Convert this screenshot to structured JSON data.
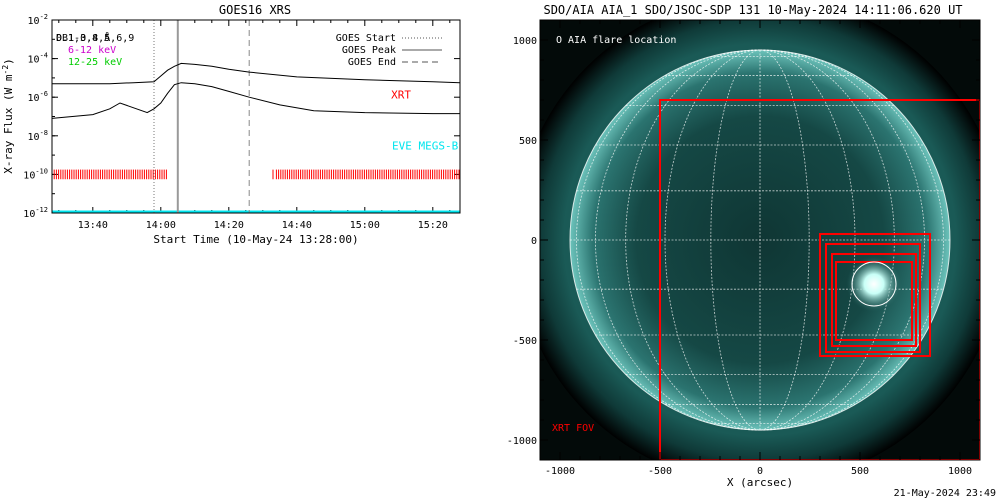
{
  "chart_data": [
    {
      "type": "line",
      "title": "GOES16 XRS",
      "xlabel": "Start Time (10-May-24 13:28:00)",
      "ylabel": "X-ray Flux (W m",
      "ylabel_sup": "-2",
      "ylabel_close": ")",
      "y_scale": "log",
      "ylim_exp": [
        -12,
        -2
      ],
      "y_ticks_exp": [
        -12,
        -10,
        -8,
        -6,
        -4,
        -2
      ],
      "y_tick_labels": [
        {
          "base": "10",
          "exp": "-12"
        },
        {
          "base": "10",
          "exp": "-10"
        },
        {
          "base": "10",
          "exp": "-8"
        },
        {
          "base": "10",
          "exp": "-6"
        },
        {
          "base": "10",
          "exp": "-4"
        },
        {
          "base": "10",
          "exp": "-2"
        }
      ],
      "x_range_min": [
        "13:28",
        "15:28"
      ],
      "x_ticks": [
        "13:40",
        "14:00",
        "14:20",
        "14:40",
        "15:00",
        "15:20"
      ],
      "legend_left": [
        {
          "label": "0.1-0.8 Å",
          "color": "#000000"
        },
        {
          "label": "DB1,3,4,5,6,9",
          "color": "#000000"
        },
        {
          "label": "6-12 keV",
          "color": "#cc00cc"
        },
        {
          "label": "12-25 keV",
          "color": "#00cc00"
        }
      ],
      "legend_right": [
        {
          "label": "GOES Start",
          "style": "dotted"
        },
        {
          "label": "GOES Peak",
          "style": "solid"
        },
        {
          "label": "GOES End",
          "style": "dashed"
        }
      ],
      "event_times": {
        "start": "13:58",
        "peak": "14:05",
        "end": "14:26"
      },
      "series": [
        {
          "name": "long",
          "color": "#000000",
          "x": [
            "13:28",
            "13:45",
            "13:52",
            "13:58",
            "14:00",
            "14:02",
            "14:04",
            "14:06",
            "14:10",
            "14:15",
            "14:20",
            "14:26",
            "14:40",
            "15:00",
            "15:20",
            "15:28"
          ],
          "y_exp": [
            -5.3,
            -5.3,
            -5.25,
            -5.2,
            -4.9,
            -4.6,
            -4.4,
            -4.25,
            -4.3,
            -4.4,
            -4.55,
            -4.7,
            -4.95,
            -5.1,
            -5.2,
            -5.25
          ]
        },
        {
          "name": "short",
          "color": "#000000",
          "x": [
            "13:28",
            "13:40",
            "13:45",
            "13:48",
            "13:52",
            "13:56",
            "13:58",
            "14:00",
            "14:02",
            "14:04",
            "14:06",
            "14:10",
            "14:15",
            "14:20",
            "14:26",
            "14:35",
            "14:45",
            "15:00",
            "15:20",
            "15:28"
          ],
          "y_exp": [
            -7.1,
            -6.9,
            -6.6,
            -6.3,
            -6.55,
            -6.8,
            -6.6,
            -6.3,
            -5.8,
            -5.35,
            -5.25,
            -5.3,
            -5.45,
            -5.7,
            -6.0,
            -6.4,
            -6.7,
            -6.8,
            -6.85,
            -6.85
          ]
        }
      ],
      "annotations": [
        {
          "text": "XRT",
          "color": "#ff0000"
        },
        {
          "text": "EVE MEGS-B",
          "color": "#00e5ee"
        }
      ],
      "xrt_bars": {
        "color": "#ff0000",
        "ranges": [
          [
            "13:28",
            "14:02"
          ],
          [
            "14:34",
            "15:28"
          ]
        ],
        "isolated": [
          "14:33"
        ]
      },
      "eve_line_color": "#00e5ee"
    },
    {
      "type": "image",
      "title": "SDO/AIA AIA_1 SDO/JSOC-SDP 131 10-May-2024 14:11:06.620 UT",
      "xlabel": "X (arcsec)",
      "x_ticks": [
        "-1000",
        "-500",
        "0",
        "500",
        "1000"
      ],
      "y_ticks": [
        "1000",
        "500",
        "0",
        "-500",
        "-1000"
      ],
      "legend": "O AIA flare location",
      "fov_label": "XRT FOV",
      "fov_color": "#ff0000",
      "solar_disk_radius_arcsec": 950,
      "xlim": [
        -1100,
        1100
      ],
      "ylim": [
        -1100,
        1100
      ],
      "fov_box": {
        "x": [
          -500,
          1100
        ],
        "y": [
          -1100,
          700
        ]
      },
      "small_boxes": [
        {
          "x": [
            300,
            850
          ],
          "y": [
            -580,
            30
          ]
        },
        {
          "x": [
            330,
            800
          ],
          "y": [
            -560,
            -20
          ]
        },
        {
          "x": [
            360,
            780
          ],
          "y": [
            -530,
            -70
          ]
        },
        {
          "x": [
            380,
            760
          ],
          "y": [
            -500,
            -110
          ]
        }
      ],
      "flare_location": {
        "x": 570,
        "y": -220,
        "r": 110
      }
    }
  ],
  "footer": {
    "timestamp": "21-May-2024 23:49"
  }
}
